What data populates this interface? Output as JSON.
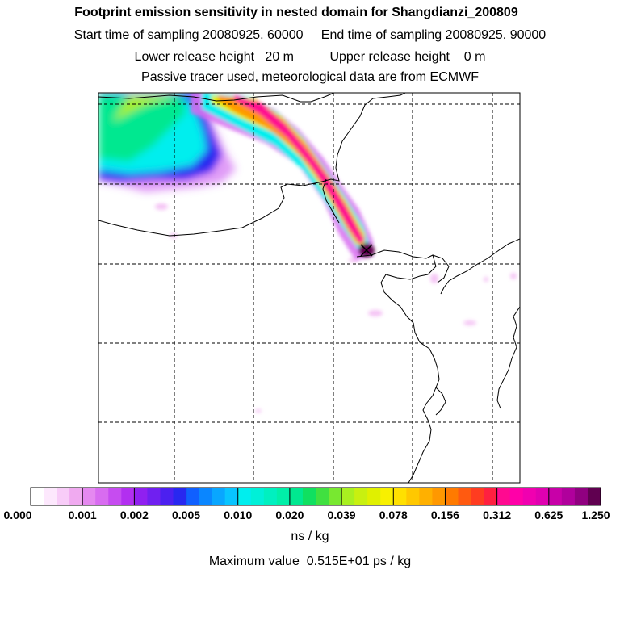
{
  "title": {
    "line1": "Footprint emission sensitivity in nested domain for Shangdianzi_200809",
    "line2": "Start time of sampling 20080925. 60000     End time of sampling 20080925. 90000",
    "line3": "Lower release height   20 m          Upper release height    0 m",
    "line4": "Passive tracer used, meteorological data are from ECMWF"
  },
  "map": {
    "variable": "footprint emission sensitivity",
    "grid_lines": "dashed",
    "release_site": "Shangdianzi",
    "plume_direction_from_site": "north-west",
    "colors": {
      "frame": "#000000",
      "coastline": "#000000",
      "release_marker": "#000000"
    }
  },
  "colorbar": {
    "tick_labels": [
      "0.000",
      "0.001",
      "0.002",
      "0.005",
      "0.010",
      "0.020",
      "0.039",
      "0.078",
      "0.156",
      "0.312",
      "0.625",
      "1.250"
    ],
    "colors": [
      "#ffffff",
      "#fde8fd",
      "#f8ccf8",
      "#f0aaf0",
      "#e589f0",
      "#d86cf0",
      "#c64cf0",
      "#b22ff0",
      "#9020f0",
      "#7020f0",
      "#4c20f0",
      "#2828f0",
      "#1060ff",
      "#0a86ff",
      "#09a6ff",
      "#08c4ff",
      "#00eeee",
      "#00f0d8",
      "#00f0c0",
      "#00f0a8",
      "#00e890",
      "#10e060",
      "#40e040",
      "#78e830",
      "#a8f020",
      "#c8f010",
      "#e0f000",
      "#f8f000",
      "#ffe000",
      "#ffc800",
      "#ffb000",
      "#ff9800",
      "#ff7a00",
      "#ff5a10",
      "#ff3c20",
      "#ff2040",
      "#ff0a90",
      "#ff00a8",
      "#f000b0",
      "#e000b0",
      "#c800a8",
      "#b0009c",
      "#900080",
      "#600050"
    ],
    "unit": "ns / kg",
    "maximum": "Maximum value  0.515E+01 ps / kg"
  }
}
